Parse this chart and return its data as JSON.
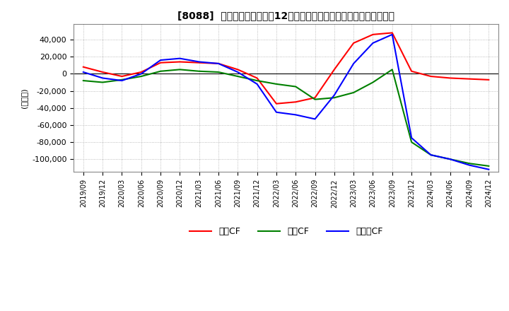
{
  "title": "[8088]  キャッシュフローの12か月移動合計の対前年同期増減額の推移",
  "ylabel": "(百万円)",
  "ylim": [
    -115000,
    58000
  ],
  "yticks": [
    40000,
    20000,
    0,
    -20000,
    -40000,
    -60000,
    -80000,
    -100000
  ],
  "legend_labels": [
    "営業CF",
    "投資CF",
    "フリーCF"
  ],
  "colors": {
    "op": "#ff0000",
    "inv": "#008000",
    "free": "#0000ff"
  },
  "x_labels": [
    "2019/09",
    "2019/12",
    "2020/03",
    "2020/06",
    "2020/09",
    "2020/12",
    "2021/03",
    "2021/06",
    "2021/09",
    "2021/12",
    "2022/03",
    "2022/06",
    "2022/09",
    "2022/12",
    "2023/03",
    "2023/06",
    "2023/09",
    "2023/12",
    "2024/03",
    "2024/06",
    "2024/09",
    "2024/12"
  ],
  "op_cf": [
    8000,
    2000,
    -3000,
    2000,
    13000,
    14000,
    13000,
    12000,
    5000,
    -5000,
    -35000,
    -33000,
    -28000,
    5000,
    36000,
    46000,
    48000,
    3000,
    -3000,
    -5000,
    -6000,
    -7000
  ],
  "inv_cf": [
    -8000,
    -10000,
    -7000,
    -3000,
    3000,
    5000,
    3000,
    2000,
    -3000,
    -8000,
    -12000,
    -15000,
    -30000,
    -28000,
    -22000,
    -10000,
    5000,
    -80000,
    -95000,
    -100000,
    -105000,
    -108000
  ],
  "free_cf": [
    2000,
    -5000,
    -8000,
    0,
    16000,
    18000,
    14000,
    12000,
    2000,
    -12000,
    -45000,
    -48000,
    -53000,
    -25000,
    12000,
    36000,
    46000,
    -75000,
    -95000,
    -100000,
    -107000,
    -112000
  ],
  "grid_color": "#aaaaaa",
  "grid_style": "dotted",
  "bg_color": "#ffffff",
  "plot_bg": "#ffffff"
}
